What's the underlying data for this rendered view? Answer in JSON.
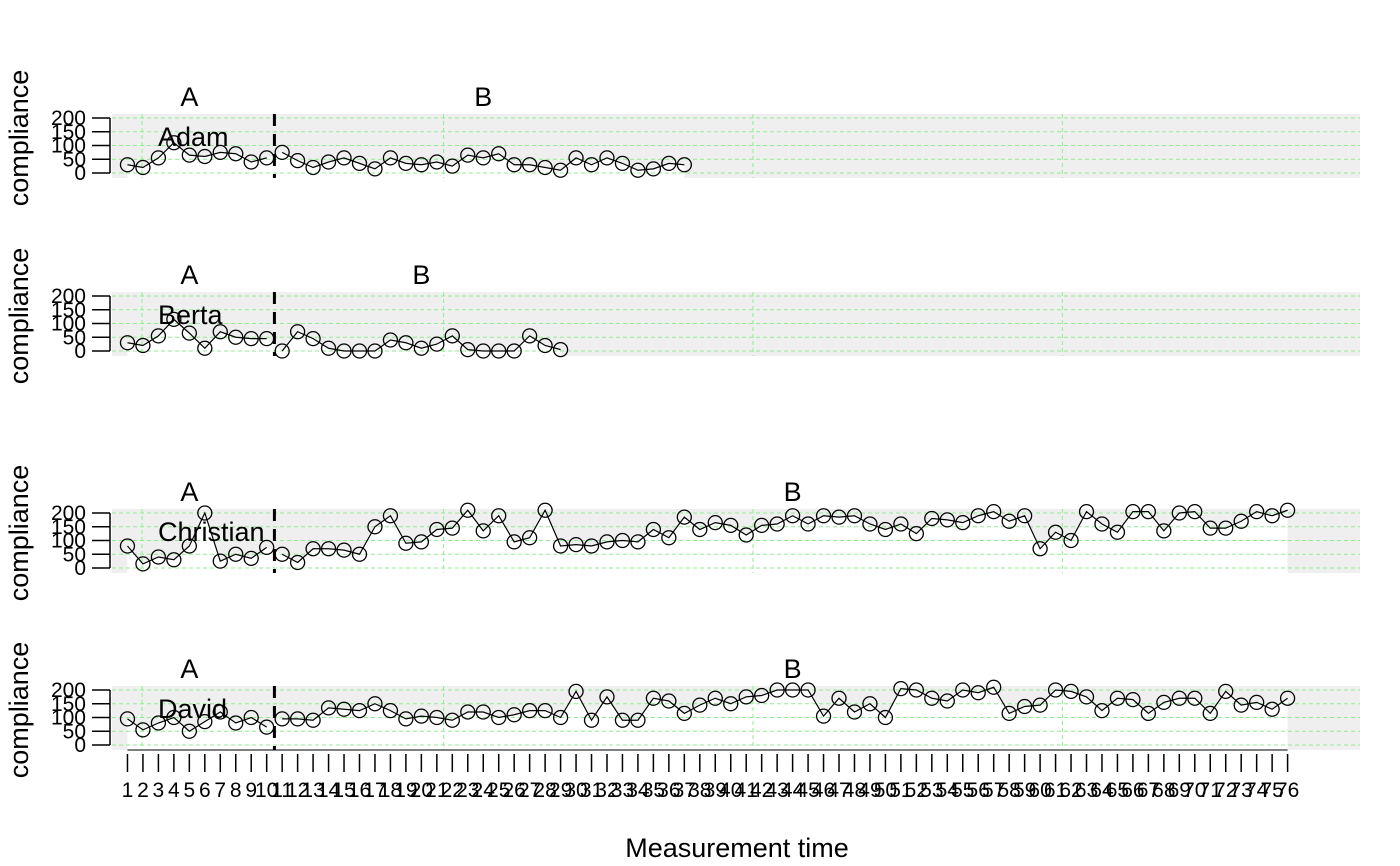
{
  "chart_data": {
    "type": "line",
    "xlabel": "Measurement time",
    "ylabel": "compliance",
    "ylim": [
      0,
      200
    ],
    "yticks": [
      0,
      50,
      100,
      150,
      200
    ],
    "xticks": [
      1,
      2,
      3,
      4,
      5,
      6,
      7,
      8,
      9,
      10,
      11,
      12,
      13,
      14,
      15,
      16,
      17,
      18,
      19,
      20,
      21,
      22,
      23,
      24,
      25,
      26,
      27,
      28,
      29,
      30,
      31,
      32,
      33,
      34,
      35,
      36,
      37,
      38,
      39,
      40,
      41,
      42,
      43,
      44,
      45,
      46,
      47,
      48,
      49,
      50,
      51,
      52,
      53,
      54,
      55,
      56,
      57,
      58,
      59,
      60,
      61,
      62,
      63,
      64,
      65,
      66,
      67,
      68,
      69,
      70,
      71,
      72,
      73,
      74,
      75,
      76
    ],
    "xlim": [
      0,
      79
    ],
    "grid": true,
    "phase_change_after": 10,
    "cases": [
      {
        "name": "Adam",
        "phases": [
          {
            "label": "A",
            "at": 5
          },
          {
            "label": "B",
            "at": 24
          }
        ],
        "values": [
          30,
          20,
          55,
          110,
          65,
          60,
          75,
          70,
          40,
          55,
          75,
          45,
          20,
          40,
          55,
          35,
          15,
          55,
          35,
          30,
          40,
          25,
          65,
          55,
          70,
          30,
          30,
          20,
          10,
          55,
          30,
          55,
          35,
          10,
          15,
          35,
          30
        ]
      },
      {
        "name": "Berta",
        "phases": [
          {
            "label": "A",
            "at": 5
          },
          {
            "label": "B",
            "at": 20
          }
        ],
        "values": [
          30,
          20,
          55,
          115,
          65,
          10,
          70,
          50,
          45,
          45,
          0,
          70,
          45,
          10,
          0,
          0,
          0,
          40,
          30,
          10,
          25,
          55,
          5,
          0,
          0,
          0,
          55,
          20,
          5
        ]
      },
      {
        "name": "Christian",
        "phases": [
          {
            "label": "A",
            "at": 5
          },
          {
            "label": "B",
            "at": 44
          }
        ],
        "values": [
          80,
          15,
          40,
          30,
          80,
          200,
          25,
          50,
          35,
          75,
          50,
          20,
          70,
          70,
          65,
          50,
          150,
          190,
          90,
          95,
          140,
          145,
          210,
          135,
          190,
          95,
          110,
          210,
          80,
          85,
          80,
          95,
          100,
          95,
          140,
          110,
          185,
          140,
          165,
          155,
          120,
          155,
          160,
          190,
          160,
          190,
          185,
          190,
          160,
          140,
          160,
          125,
          180,
          175,
          165,
          190,
          205,
          170,
          190,
          70,
          130,
          100,
          205,
          160,
          130,
          205,
          205,
          135,
          200,
          205,
          145,
          145,
          170,
          205,
          190,
          210
        ]
      },
      {
        "name": "David",
        "phases": [
          {
            "label": "A",
            "at": 5
          },
          {
            "label": "B",
            "at": 44
          }
        ],
        "values": [
          95,
          55,
          80,
          100,
          50,
          85,
          120,
          80,
          100,
          65,
          95,
          95,
          90,
          135,
          130,
          125,
          150,
          125,
          95,
          105,
          100,
          90,
          120,
          120,
          100,
          110,
          125,
          125,
          100,
          195,
          90,
          175,
          90,
          90,
          170,
          160,
          115,
          145,
          170,
          150,
          175,
          180,
          200,
          200,
          200,
          105,
          170,
          120,
          150,
          100,
          205,
          200,
          170,
          160,
          200,
          190,
          210,
          115,
          140,
          145,
          200,
          195,
          175,
          125,
          170,
          165,
          115,
          155,
          170,
          170,
          115,
          195,
          145,
          155,
          130,
          170
        ]
      }
    ]
  }
}
